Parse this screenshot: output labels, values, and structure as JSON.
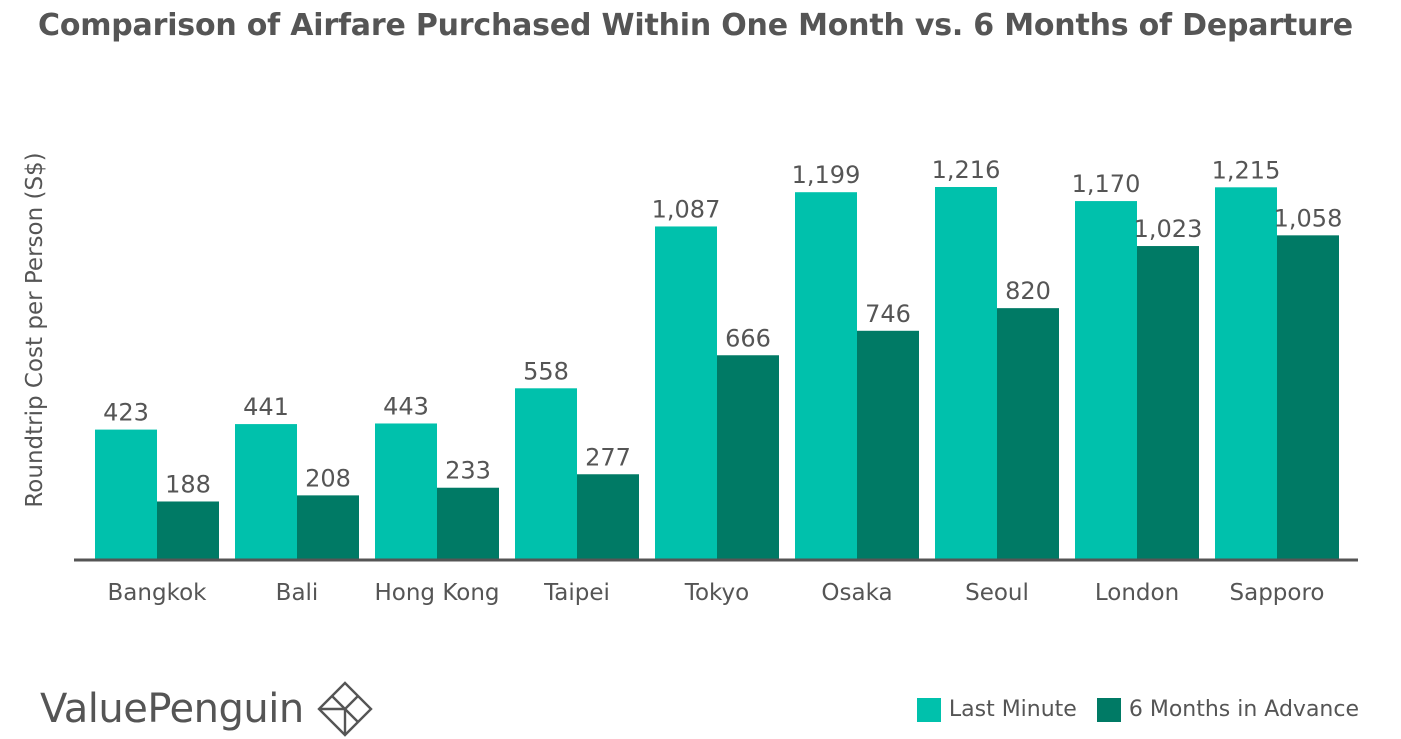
{
  "title": "Comparison of Airfare Purchased Within One Month vs. 6 Months of Departure",
  "brand": {
    "name": "ValuePenguin",
    "logo_icon": "valuepenguin-diamond-logo"
  },
  "colors": {
    "last_minute": "#00C1AC",
    "advance": "#007A65",
    "axis": "#555555",
    "text": "#555555"
  },
  "legend": [
    {
      "label": "Last Minute",
      "color": "#00C1AC"
    },
    {
      "label": "6 Months in Advance",
      "color": "#007A65"
    }
  ],
  "chart_data": {
    "type": "bar",
    "title": "Comparison of Airfare Purchased Within One Month vs. 6 Months of Departure",
    "xlabel": "",
    "ylabel": "Roundtrip Cost per Person (S$)",
    "ylim": [
      0,
      1216
    ],
    "grid": false,
    "legend_position": "bottom-right",
    "categories": [
      "Bangkok",
      "Bali",
      "Hong Kong",
      "Taipei",
      "Tokyo",
      "Osaka",
      "Seoul",
      "London",
      "Sapporo"
    ],
    "series": [
      {
        "name": "Last Minute",
        "color": "#00C1AC",
        "values": [
          423,
          441,
          443,
          558,
          1087,
          1199,
          1216,
          1170,
          1215
        ],
        "labels": [
          "423",
          "441",
          "443",
          "558",
          "1,087",
          "1,199",
          "1,216",
          "1,170",
          "1,215"
        ]
      },
      {
        "name": "6 Months in Advance",
        "color": "#007A65",
        "values": [
          188,
          208,
          233,
          277,
          666,
          746,
          820,
          1023,
          1058
        ],
        "labels": [
          "188",
          "208",
          "233",
          "277",
          "666",
          "746",
          "820",
          "1,023",
          "1,058"
        ]
      }
    ]
  }
}
